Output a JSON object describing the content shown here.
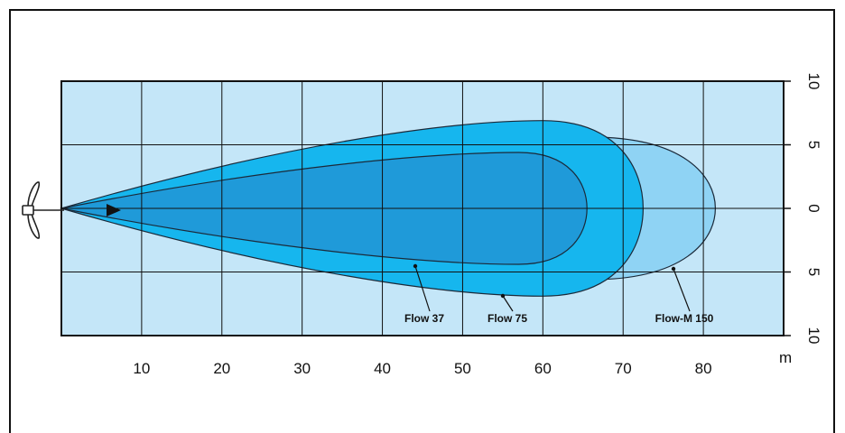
{
  "chart_data": {
    "type": "area",
    "title": "",
    "xlabel": "m",
    "ylabel": "",
    "xlim": [
      0,
      90
    ],
    "ylim": [
      -10,
      10
    ],
    "x_ticks": [
      10,
      20,
      30,
      40,
      50,
      60,
      70,
      80
    ],
    "y_ticks": [
      "10",
      "5",
      "0",
      "5",
      "10"
    ],
    "y_tick_values": [
      10,
      5,
      0,
      -5,
      -10
    ],
    "grid": true,
    "series": [
      {
        "name": "Flow-M 150",
        "max_distance": 81.5,
        "max_half_width": 5.6,
        "widest_at": 66
      },
      {
        "name": "Flow 75",
        "max_distance": 72.5,
        "max_half_width": 6.9,
        "widest_at": 60
      },
      {
        "name": "Flow 37",
        "max_distance": 65.5,
        "max_half_width": 4.4,
        "widest_at": 57
      }
    ],
    "colors": {
      "background": "#c4e6f8",
      "grid": "#111111",
      "Flow-M 150": "#8fd3f4",
      "Flow 75": "#16b6ee",
      "Flow 37": "#1f9ad9"
    },
    "icons": [
      "propeller-icon",
      "direction-arrow-icon"
    ]
  }
}
